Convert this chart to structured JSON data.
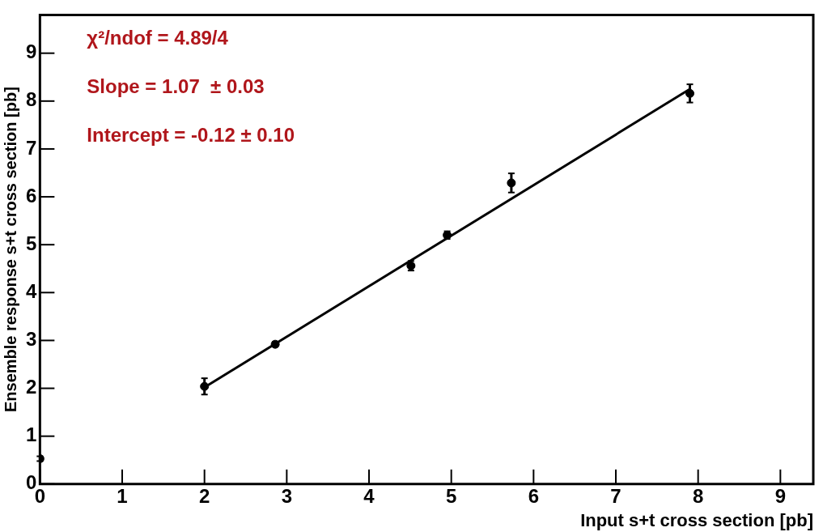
{
  "chart_data": {
    "type": "scatter",
    "xlabel": "Input s+t cross section [pb]",
    "ylabel": "Ensemble response s+t cross section [pb]",
    "annotations": [
      "χ²/ndof = 4.89/4",
      "Slope = 1.07  ± 0.03",
      "Intercept = -0.12 ± 0.10"
    ],
    "series": [
      {
        "type": "scatter",
        "marker": "circle",
        "color": "#000000",
        "x": [
          0,
          2,
          2.86,
          4.51,
          4.95,
          5.73,
          7.9
        ],
        "values": [
          0.53,
          2.04,
          2.92,
          4.56,
          5.2,
          6.29,
          8.16
        ],
        "errors": [
          0.05,
          0.17,
          0.05,
          0.1,
          0.08,
          0.2,
          0.19
        ]
      },
      {
        "type": "line",
        "color": "#000000",
        "x": [
          2,
          7.9
        ],
        "values": [
          2.02,
          8.25
        ]
      }
    ],
    "xlim": [
      0,
      9.4
    ],
    "ylim": [
      0,
      9.8
    ],
    "xticks": [
      0,
      1,
      2,
      3,
      4,
      5,
      6,
      7,
      8,
      9
    ],
    "yticks": [
      0,
      1,
      2,
      3,
      4,
      5,
      6,
      7,
      8,
      9
    ],
    "grid": false,
    "legend": false,
    "line_style": "solid"
  }
}
